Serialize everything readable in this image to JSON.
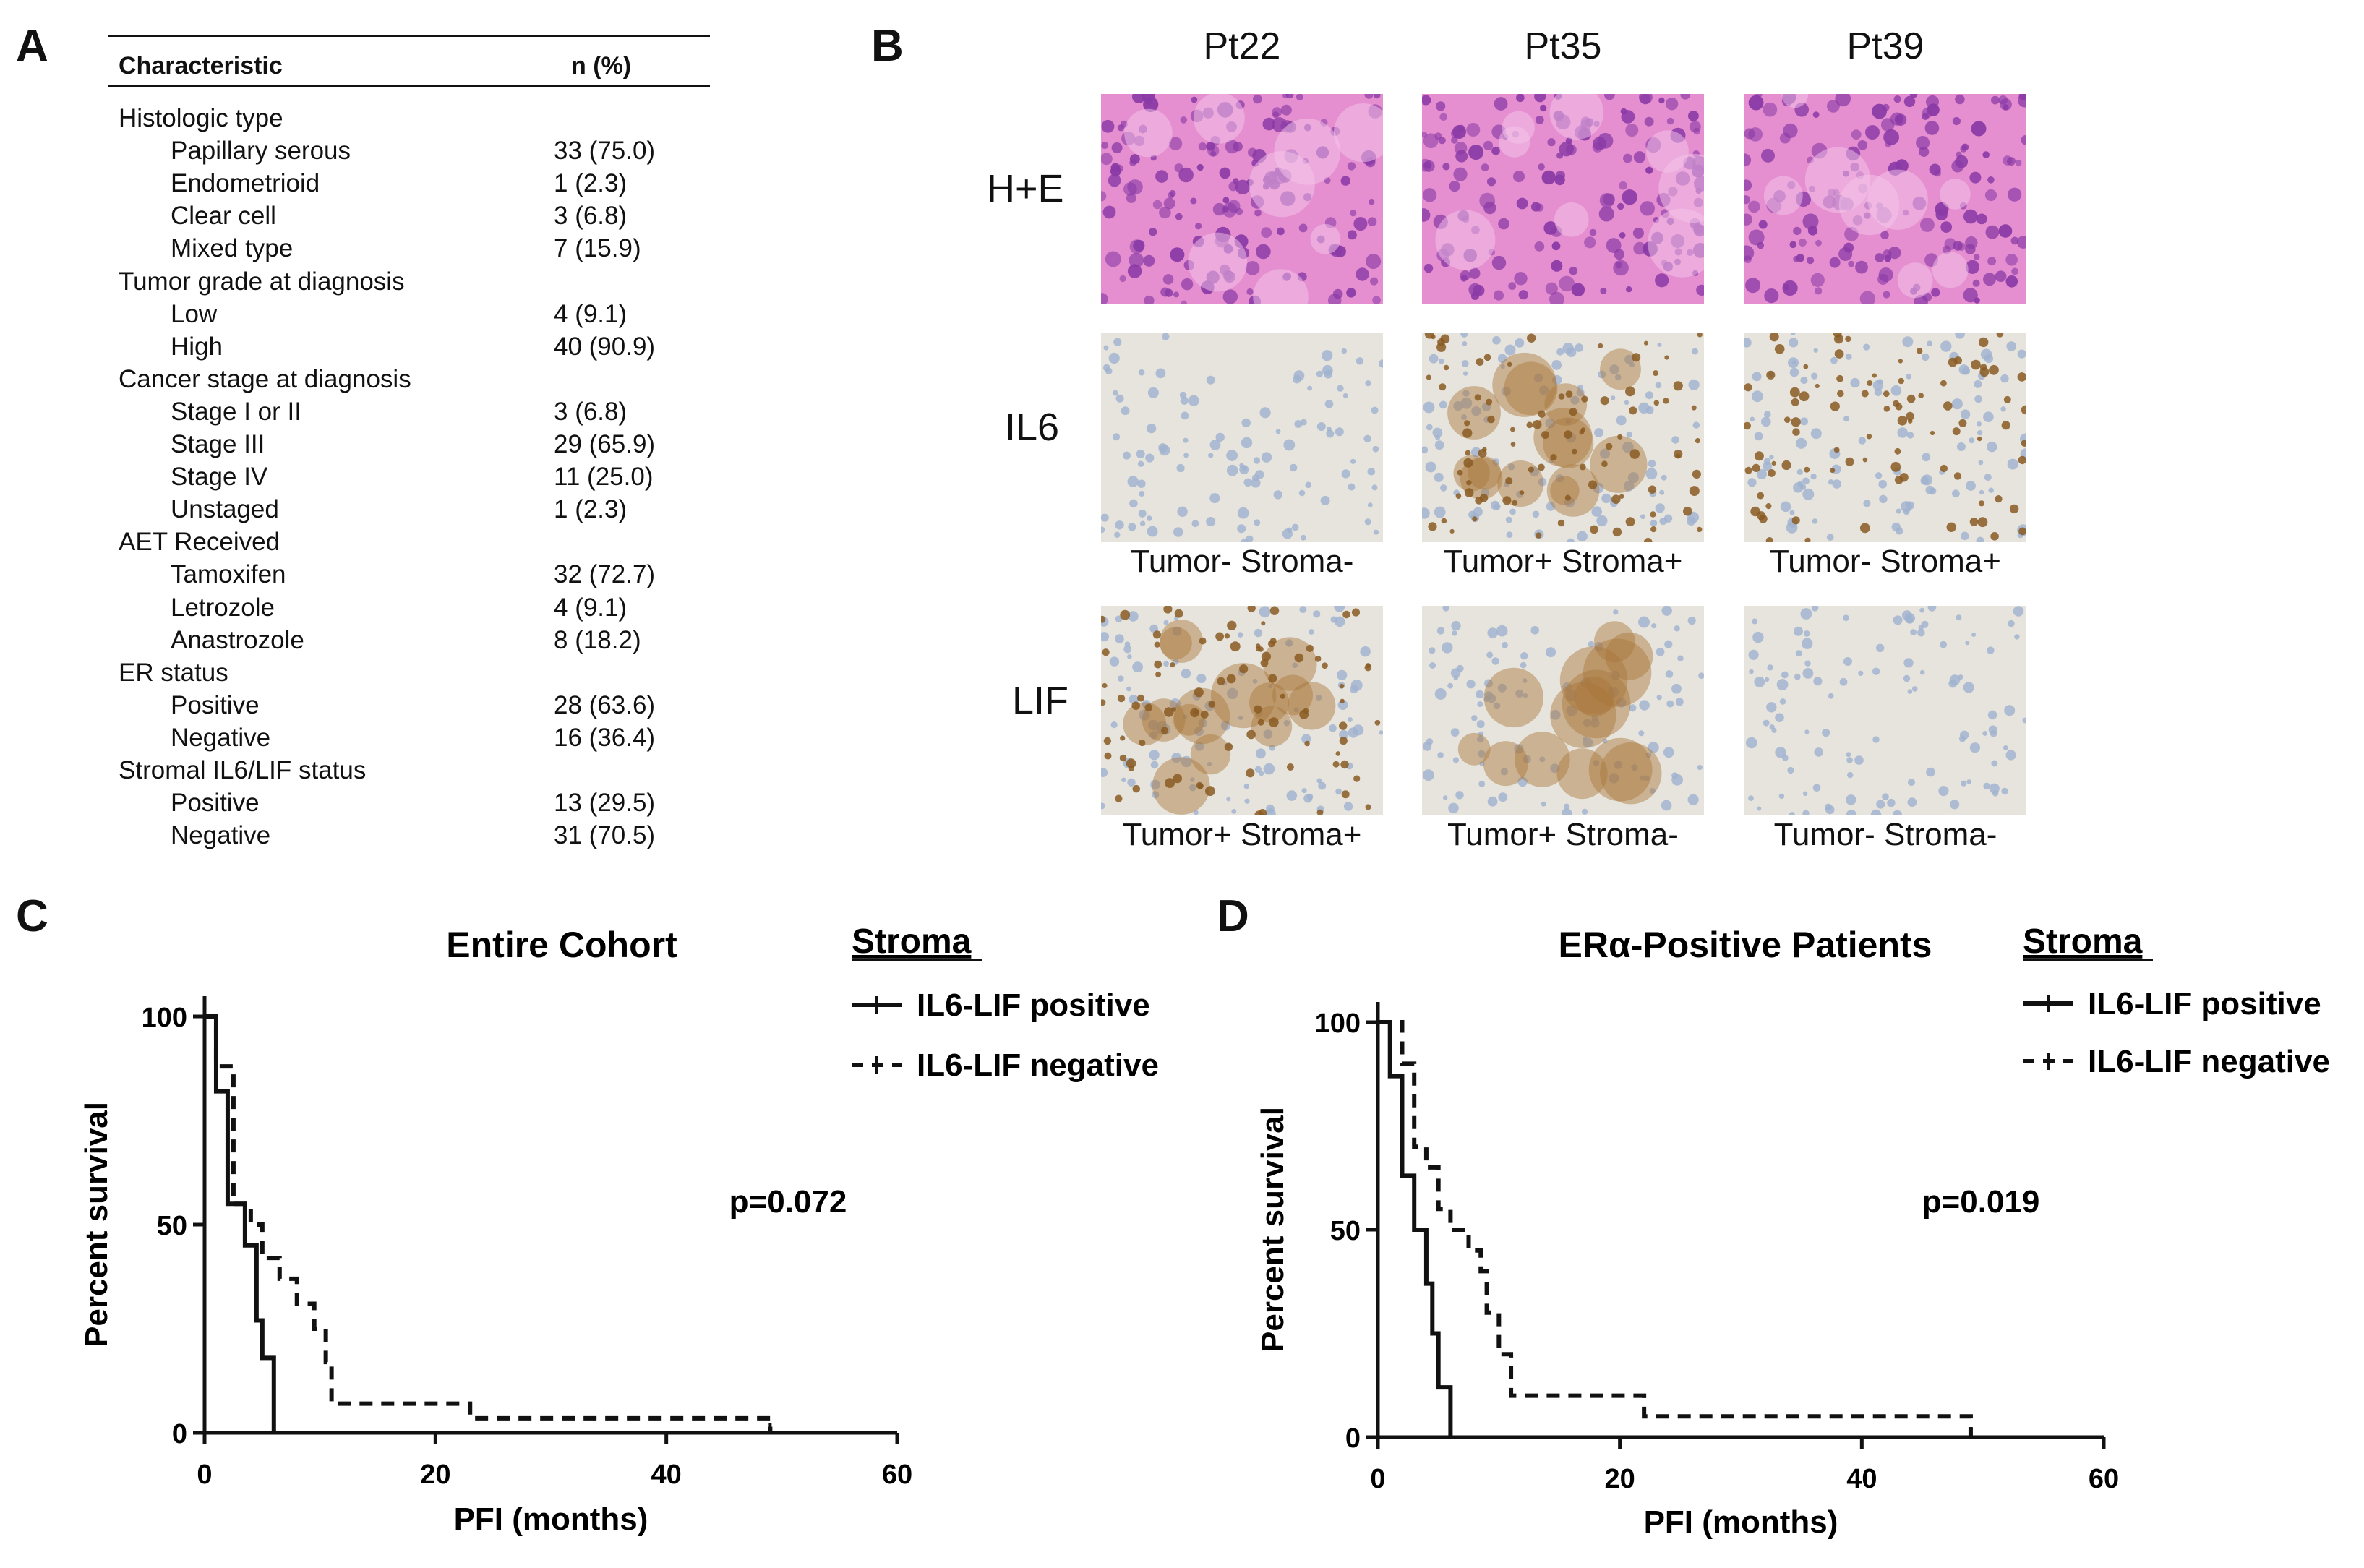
{
  "panel_labels": {
    "a": "A",
    "b": "B",
    "c": "C",
    "d": "D"
  },
  "table": {
    "header_characteristic": "Characteristic",
    "header_n": "n (%)",
    "rows": [
      {
        "label": "Histologic type",
        "value": "",
        "indent": false
      },
      {
        "label": "Papillary serous",
        "value": "33 (75.0)",
        "indent": true
      },
      {
        "label": "Endometrioid",
        "value": "1 (2.3)",
        "indent": true
      },
      {
        "label": "Clear cell",
        "value": "3 (6.8)",
        "indent": true
      },
      {
        "label": "Mixed type",
        "value": "7 (15.9)",
        "indent": true
      },
      {
        "label": "Tumor grade at diagnosis",
        "value": "",
        "indent": false
      },
      {
        "label": "Low",
        "value": "4 (9.1)",
        "indent": true
      },
      {
        "label": "High",
        "value": "40 (90.9)",
        "indent": true
      },
      {
        "label": "Cancer stage at diagnosis",
        "value": "",
        "indent": false
      },
      {
        "label": "Stage I or II",
        "value": "3 (6.8)",
        "indent": true
      },
      {
        "label": "Stage III",
        "value": "29 (65.9)",
        "indent": true
      },
      {
        "label": "Stage IV",
        "value": "11 (25.0)",
        "indent": true
      },
      {
        "label": "Unstaged",
        "value": "1 (2.3)",
        "indent": true
      },
      {
        "label": "AET Received",
        "value": "",
        "indent": false
      },
      {
        "label": "Tamoxifen",
        "value": "32 (72.7)",
        "indent": true
      },
      {
        "label": "Letrozole",
        "value": "4 (9.1)",
        "indent": true
      },
      {
        "label": "Anastrozole",
        "value": "8 (18.2)",
        "indent": true
      },
      {
        "label": "ER status",
        "value": "",
        "indent": false
      },
      {
        "label": "Positive",
        "value": "28 (63.6)",
        "indent": true
      },
      {
        "label": "Negative",
        "value": "16 (36.4)",
        "indent": true
      },
      {
        "label": "Stromal IL6/LIF status",
        "value": "",
        "indent": false
      },
      {
        "label": "Positive",
        "value": "13 (29.5)",
        "indent": true
      },
      {
        "label": "Negative",
        "value": "31 (70.5)",
        "indent": true
      }
    ]
  },
  "micrographs": {
    "columns": [
      "Pt22",
      "Pt35",
      "Pt39"
    ],
    "rows": [
      {
        "label": "H+E",
        "stain": "he",
        "captions": [
          "",
          "",
          ""
        ]
      },
      {
        "label": "IL6",
        "stain": "ihc",
        "captions": [
          "Tumor- Stroma-",
          "Tumor+ Stroma+",
          "Tumor- Stroma+"
        ]
      },
      {
        "label": "LIF",
        "stain": "ihc",
        "captions": [
          "Tumor+ Stroma+",
          "Tumor+ Stroma-",
          "Tumor- Stroma-"
        ]
      }
    ],
    "colors": {
      "he_pink": "#e58fd0",
      "he_purple": "#8a3aa6",
      "ihc_brown": "#a8753a",
      "ihc_blue": "#9fb2cf",
      "ihc_bg": "#e6e4dc"
    }
  },
  "chart_data": [
    {
      "type": "line",
      "subtype": "kaplan-meier",
      "title": "Entire Cohort",
      "xlabel": "PFI (months)",
      "ylabel": "Percent survival",
      "xlim": [
        0,
        60
      ],
      "ylim": [
        0,
        100
      ],
      "xticks": [
        0,
        20,
        40,
        60
      ],
      "yticks": [
        0,
        50,
        100
      ],
      "legend_title": "Stroma",
      "legend_position": "top-right",
      "annotation": "p=0.072",
      "series": [
        {
          "name": "IL6-LIF positive",
          "style": "solid",
          "steps": [
            [
              0,
              100
            ],
            [
              1,
              82
            ],
            [
              2,
              55
            ],
            [
              3.5,
              45
            ],
            [
              4.5,
              27
            ],
            [
              5,
              18
            ],
            [
              6,
              0
            ]
          ]
        },
        {
          "name": "IL6-LIF negative",
          "style": "dashed",
          "steps": [
            [
              0,
              100
            ],
            [
              1,
              88
            ],
            [
              2.5,
              55
            ],
            [
              4,
              50
            ],
            [
              5,
              42
            ],
            [
              6.5,
              37
            ],
            [
              8,
              31
            ],
            [
              9.5,
              25
            ],
            [
              10.5,
              17
            ],
            [
              11,
              7
            ],
            [
              23,
              3.5
            ],
            [
              49,
              0
            ]
          ]
        }
      ]
    },
    {
      "type": "line",
      "subtype": "kaplan-meier",
      "title": "ERα-Positive Patients",
      "xlabel": "PFI (months)",
      "ylabel": "Percent survival",
      "xlim": [
        0,
        60
      ],
      "ylim": [
        0,
        100
      ],
      "xticks": [
        0,
        20,
        40,
        60
      ],
      "yticks": [
        0,
        50,
        100
      ],
      "legend_title": "Stroma",
      "legend_position": "top-right",
      "annotation": "p=0.019",
      "series": [
        {
          "name": "IL6-LIF positive",
          "style": "solid",
          "steps": [
            [
              0,
              100
            ],
            [
              1,
              87
            ],
            [
              2,
              63
            ],
            [
              3,
              50
            ],
            [
              4,
              37
            ],
            [
              4.5,
              25
            ],
            [
              5,
              12
            ],
            [
              6,
              0
            ]
          ]
        },
        {
          "name": "IL6-LIF negative",
          "style": "dashed",
          "steps": [
            [
              0,
              100
            ],
            [
              2,
              90
            ],
            [
              3,
              70
            ],
            [
              4,
              65
            ],
            [
              5,
              55
            ],
            [
              6,
              50
            ],
            [
              7.5,
              45
            ],
            [
              8.5,
              40
            ],
            [
              9,
              30
            ],
            [
              10,
              20
            ],
            [
              11,
              10
            ],
            [
              22,
              5
            ],
            [
              49,
              0
            ]
          ]
        }
      ]
    }
  ]
}
